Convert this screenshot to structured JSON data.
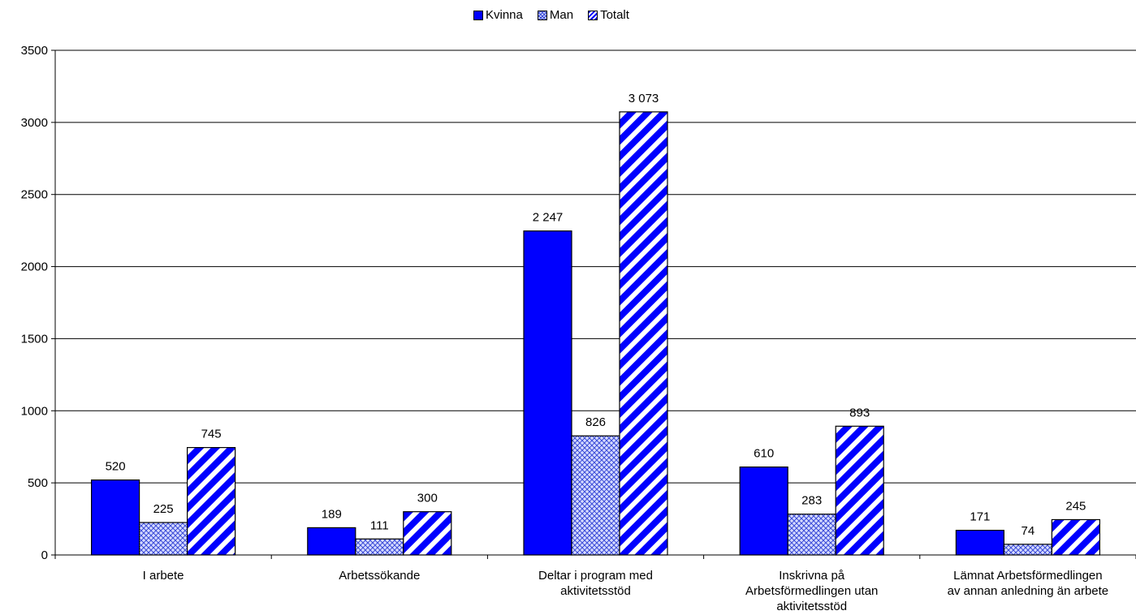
{
  "chart_data": {
    "type": "bar",
    "categories": [
      [
        "I arbete"
      ],
      [
        "Arbetssökande"
      ],
      [
        "Deltar i program med",
        "aktivitetsstöd"
      ],
      [
        "Inskrivna på",
        "Arbetsförmedlingen utan",
        "aktivitetsstöd"
      ],
      [
        "Lämnat Arbetsförmedlingen",
        "av annan anledning än arbete"
      ]
    ],
    "series": [
      {
        "name": "Kvinna",
        "values": [
          520,
          189,
          2247,
          610,
          171
        ],
        "labels": [
          "520",
          "189",
          "2 247",
          "610",
          "171"
        ],
        "color": "#0000ff",
        "pattern": "solid"
      },
      {
        "name": "Man",
        "values": [
          225,
          111,
          826,
          283,
          74
        ],
        "labels": [
          "225",
          "111",
          "826",
          "283",
          "74"
        ],
        "color": "#3b4bd8",
        "pattern": "crosshatch"
      },
      {
        "name": "Totalt",
        "values": [
          745,
          300,
          3073,
          893,
          245
        ],
        "labels": [
          "745",
          "300",
          "3 073",
          "893",
          "245"
        ],
        "color": "#0000ff",
        "pattern": "diagonal-stripes"
      }
    ],
    "ylim": [
      0,
      3500
    ],
    "yticks": [
      0,
      500,
      1000,
      1500,
      2000,
      2500,
      3000,
      3500
    ],
    "grid": true,
    "legend_position": "top-center",
    "title": "",
    "xlabel": "",
    "ylabel": ""
  }
}
